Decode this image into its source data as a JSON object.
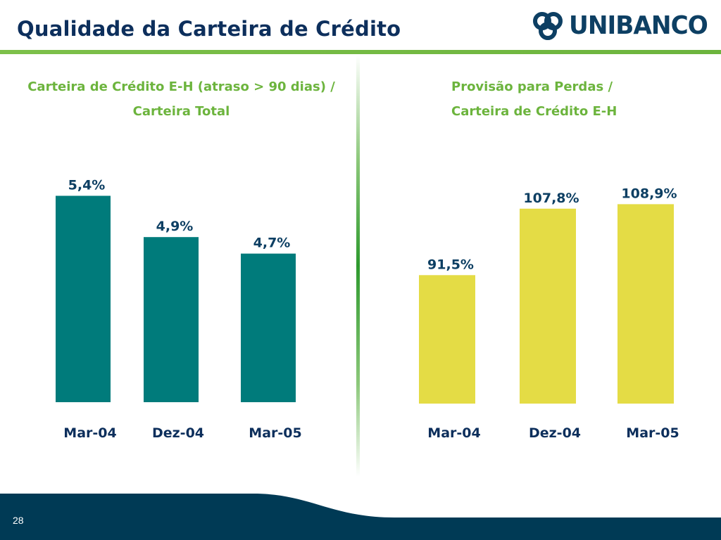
{
  "header": {
    "title": "Qualidade da Carteira de Crédito",
    "logo_text": "UNIBANCO"
  },
  "footer": {
    "slide_number": "28"
  },
  "colors": {
    "navy": "#0d2f5c",
    "green": "#6cb43d",
    "teal_bar": "#007b7b",
    "yellow_bar": "#e4dc45",
    "footer": "#003a55"
  },
  "chart_data": [
    {
      "type": "bar",
      "title_lines": [
        "Carteira de Crédito E-H (atraso > 90 dias) /",
        "Carteira Total"
      ],
      "categories": [
        "Mar-04",
        "Dez-04",
        "Mar-05"
      ],
      "values": [
        5.4,
        4.9,
        4.7
      ],
      "labels": [
        "5,4%",
        "4,9%",
        "4,7%"
      ],
      "ylim": [
        2.9,
        5.6
      ],
      "bar_color": "#007b7b",
      "grid": false,
      "legend": "none"
    },
    {
      "type": "bar",
      "title_lines": [
        "Provisão para Perdas /",
        "Carteira de Crédito E-H"
      ],
      "categories": [
        "Mar-04",
        "Dez-04",
        "Mar-05"
      ],
      "values": [
        91.5,
        107.8,
        108.9
      ],
      "labels": [
        "91,5%",
        "107,8%",
        "108,9%"
      ],
      "ylim": [
        60,
        115
      ],
      "bar_color": "#e4dc45",
      "grid": false,
      "legend": "none"
    }
  ]
}
